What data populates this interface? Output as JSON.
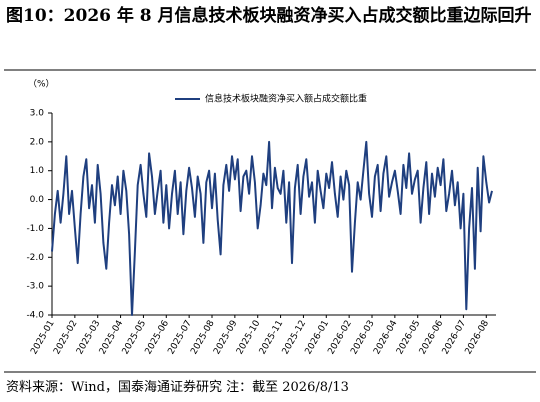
{
  "chart_data": {
    "type": "line",
    "title": "图10：2026 年 8 月信息技术板块融资净买入占成交额比重边际回升",
    "y_label": "（%）",
    "source": "资料来源：Wind，国泰海通证券研究 注：截至 2026/8/13",
    "categories": [
      "2025-01",
      null,
      null,
      null,
      null,
      null,
      null,
      null,
      "2025-02",
      null,
      null,
      null,
      null,
      null,
      null,
      null,
      "2025-03",
      null,
      null,
      null,
      null,
      null,
      null,
      null,
      "2025-04",
      null,
      null,
      null,
      null,
      null,
      null,
      null,
      "2025-05",
      null,
      null,
      null,
      null,
      null,
      null,
      null,
      "2025-06",
      null,
      null,
      null,
      null,
      null,
      null,
      null,
      "2025-07",
      null,
      null,
      null,
      null,
      null,
      null,
      null,
      "2025-08",
      null,
      null,
      null,
      null,
      null,
      null,
      null,
      "2025-09",
      null,
      null,
      null,
      null,
      null,
      null,
      null,
      "2025-10",
      null,
      null,
      null,
      null,
      null,
      null,
      null,
      "2025-11",
      null,
      null,
      null,
      null,
      null,
      null,
      null,
      "2025-12",
      null,
      null,
      null,
      null,
      null,
      null,
      null,
      "2026-01",
      null,
      null,
      null,
      null,
      null,
      null,
      null,
      "2026-02",
      null,
      null,
      null,
      null,
      null,
      null,
      null,
      "2026-03",
      null,
      null,
      null,
      null,
      null,
      null,
      null,
      "2026-04",
      null,
      null,
      null,
      null,
      null,
      null,
      null,
      "2026-05",
      null,
      null,
      null,
      null,
      null,
      null,
      null,
      "2026-06",
      null,
      null,
      null,
      null,
      null,
      null,
      null,
      "2026-07",
      null,
      null,
      null,
      null,
      null,
      null,
      null,
      "2026-08",
      null,
      null
    ],
    "series": [
      {
        "name": "信息技术板块融资净买入额占成交额比重",
        "color": "#1f3f7f",
        "values": [
          -1.8,
          -0.5,
          0.3,
          -0.8,
          0.2,
          1.5,
          -0.5,
          0.3,
          -1.0,
          -2.2,
          -0.5,
          0.8,
          1.4,
          -0.3,
          0.5,
          -0.8,
          1.2,
          0.2,
          -1.5,
          -2.4,
          -0.8,
          0.5,
          -0.2,
          0.8,
          -0.5,
          1.0,
          0.3,
          -1.2,
          -4.0,
          -1.8,
          0.5,
          1.2,
          0.2,
          -0.6,
          1.6,
          0.8,
          -0.5,
          0.3,
          1.0,
          -0.8,
          0.5,
          -1.0,
          0.2,
          1.0,
          -0.5,
          0.6,
          -1.2,
          0.3,
          1.1,
          0.4,
          -0.6,
          0.8,
          0.2,
          -1.5,
          0.6,
          1.0,
          -0.3,
          0.9,
          -0.7,
          -1.9,
          0.5,
          1.2,
          0.3,
          1.5,
          0.7,
          1.4,
          -0.4,
          0.8,
          1.0,
          0.2,
          1.5,
          0.6,
          -1.0,
          -0.2,
          0.9,
          0.5,
          2.0,
          -0.3,
          1.1,
          0.4,
          0.2,
          1.0,
          -0.8,
          0.6,
          -2.2,
          0.4,
          1.2,
          -0.5,
          0.8,
          1.4,
          0.1,
          0.6,
          -0.8,
          1.0,
          0.3,
          -0.3,
          0.9,
          0.4,
          1.3,
          0.2,
          -0.6,
          0.8,
          0.0,
          1.0,
          0.5,
          -2.5,
          -0.8,
          0.6,
          0.0,
          1.0,
          2.0,
          0.2,
          -0.6,
          0.8,
          1.2,
          -0.4,
          0.9,
          1.5,
          0.1,
          0.6,
          1.0,
          0.3,
          -0.5,
          1.2,
          0.4,
          1.6,
          0.2,
          0.7,
          1.0,
          -0.8,
          0.4,
          1.3,
          -0.5,
          0.9,
          0.1,
          1.1,
          0.5,
          1.4,
          -0.4,
          0.2,
          1.0,
          -0.2,
          0.6,
          -1.0,
          0.2,
          -3.8,
          -1.0,
          0.4,
          -2.4,
          1.1,
          -1.1,
          1.5,
          0.6,
          -0.1,
          0.3
        ]
      }
    ],
    "ylim": [
      -4,
      3
    ],
    "yticks": [
      {
        "value": 3,
        "label": "3.0"
      },
      {
        "value": 2,
        "label": "2.0"
      },
      {
        "value": 1,
        "label": "1.0"
      },
      {
        "value": 0,
        "label": "0.0"
      },
      {
        "value": -1,
        "label": "-1.0"
      },
      {
        "value": -2,
        "label": "-2.0"
      },
      {
        "value": -3,
        "label": "-3.0"
      },
      {
        "value": -4,
        "label": "-4.0"
      }
    ],
    "grid": false,
    "legend": "top"
  }
}
